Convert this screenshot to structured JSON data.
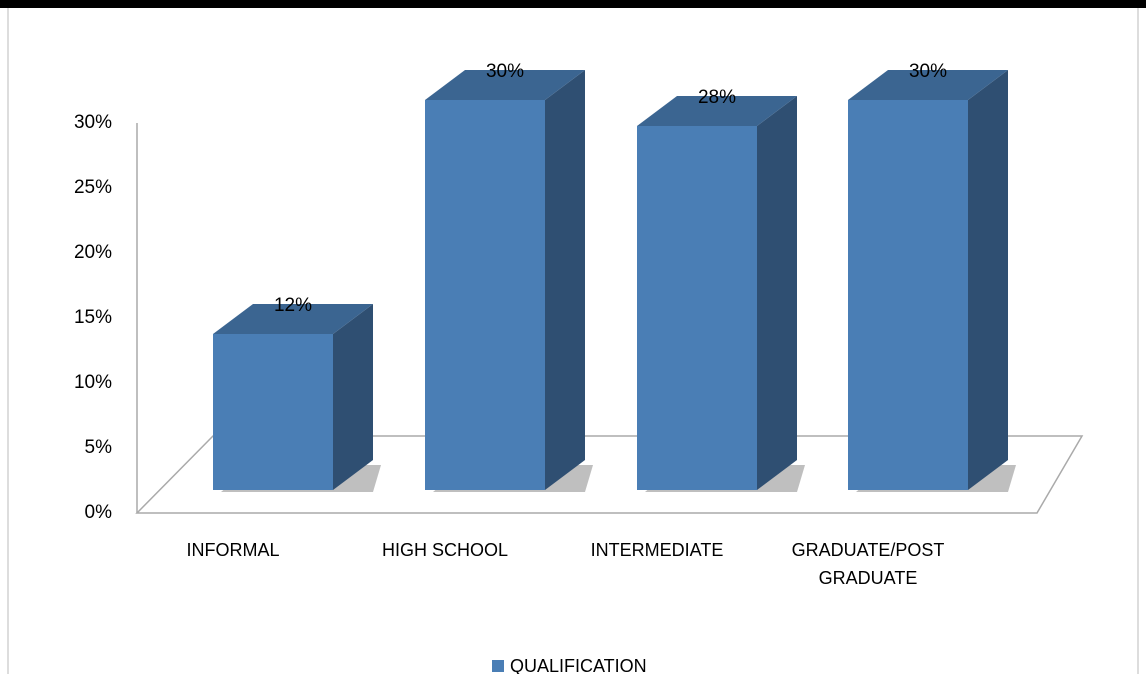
{
  "chart_data": {
    "type": "bar3d",
    "categories": [
      "INFORMAL",
      "HIGH SCHOOL",
      "INTERMEDIATE",
      "GRADUATE/POST GRADUATE"
    ],
    "series": [
      {
        "name": "QUALIFICATION",
        "color": "#4a7eb5",
        "values": [
          12,
          30,
          28,
          30
        ],
        "value_labels": [
          "12%",
          "30%",
          "28%",
          "30%"
        ]
      }
    ],
    "ylim": [
      0,
      30
    ],
    "yticks": [
      {
        "value": 0,
        "label": "0%"
      },
      {
        "value": 5,
        "label": "5%"
      },
      {
        "value": 10,
        "label": "10%"
      },
      {
        "value": 15,
        "label": "15%"
      },
      {
        "value": 20,
        "label": "20%"
      },
      {
        "value": 25,
        "label": "25%"
      },
      {
        "value": 30,
        "label": "30%"
      }
    ],
    "legend": "bottom"
  }
}
